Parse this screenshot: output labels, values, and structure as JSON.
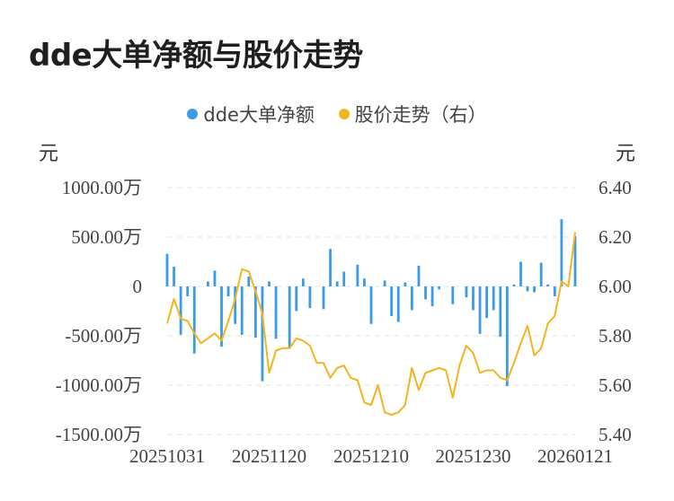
{
  "title": "dde大单净额与股价走势",
  "chart_data": {
    "type": "bar+line",
    "legend": [
      {
        "name": "dde大单净额",
        "color": "#3d9be6"
      },
      {
        "name": "股价走势（右）",
        "color": "#f2b51f"
      }
    ],
    "y_left": {
      "unit": "元",
      "ticks": [
        "1000.00万",
        "500.00万",
        "0",
        "-500.00万",
        "-1000.00万",
        "-1500.00万"
      ],
      "range": [
        -1500,
        1000
      ]
    },
    "y_right": {
      "unit": "元",
      "ticks": [
        "6.40",
        "6.20",
        "6.00",
        "5.80",
        "5.60",
        "5.40"
      ],
      "range": [
        5.4,
        6.4
      ]
    },
    "x_tick_labels": [
      "20251031",
      "20251120",
      "20251210",
      "20251230",
      "20260121"
    ],
    "x_tick_index": [
      0,
      15,
      30,
      45,
      60
    ],
    "dde_net_wan": [
      330,
      200,
      -490,
      -100,
      -680,
      0,
      50,
      160,
      -610,
      -100,
      -380,
      -490,
      100,
      -520,
      -960,
      50,
      -530,
      0,
      -630,
      -250,
      80,
      -220,
      0,
      -230,
      380,
      50,
      150,
      0,
      220,
      80,
      -380,
      0,
      60,
      -300,
      -360,
      40,
      -240,
      210,
      -130,
      -200,
      -30,
      0,
      -180,
      0,
      -110,
      -240,
      -480,
      -320,
      -240,
      -510,
      -1010,
      20,
      250,
      -50,
      -60,
      240,
      20,
      -100,
      680,
      0,
      510
    ],
    "price": [
      5.85,
      5.95,
      5.87,
      5.86,
      5.81,
      5.77,
      5.79,
      5.81,
      5.78,
      5.86,
      5.95,
      6.07,
      6.06,
      5.98,
      5.89,
      5.65,
      5.74,
      5.75,
      5.75,
      5.79,
      5.78,
      5.76,
      5.69,
      5.69,
      5.63,
      5.67,
      5.68,
      5.63,
      5.62,
      5.53,
      5.52,
      5.6,
      5.49,
      5.48,
      5.49,
      5.52,
      5.67,
      5.58,
      5.65,
      5.66,
      5.67,
      5.66,
      5.55,
      5.68,
      5.76,
      5.73,
      5.65,
      5.66,
      5.66,
      5.63,
      5.62,
      5.69,
      5.77,
      5.84,
      5.72,
      5.75,
      5.85,
      5.88,
      6.02,
      6.0,
      6.22
    ]
  }
}
